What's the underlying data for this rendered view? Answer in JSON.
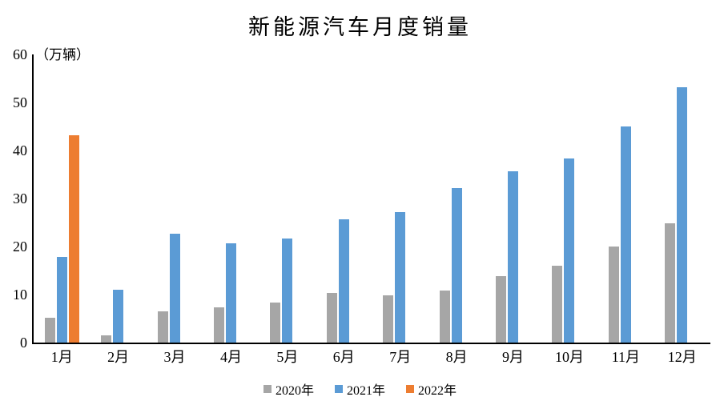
{
  "chart_data": {
    "type": "bar",
    "title": "新能源汽车月度销量",
    "unit_label": "（万辆）",
    "categories": [
      "1月",
      "2月",
      "3月",
      "4月",
      "5月",
      "6月",
      "7月",
      "8月",
      "9月",
      "10月",
      "11月",
      "12月"
    ],
    "series": [
      {
        "name": "2020年",
        "color": "#A6A6A6",
        "values": [
          5.2,
          1.5,
          6.5,
          7.4,
          8.3,
          10.4,
          9.8,
          10.9,
          13.8,
          16.0,
          20.0,
          24.8
        ]
      },
      {
        "name": "2021年",
        "color": "#5B9BD5",
        "values": [
          17.9,
          11.0,
          22.6,
          20.6,
          21.7,
          25.6,
          27.1,
          32.1,
          35.7,
          38.3,
          45.0,
          53.1
        ]
      },
      {
        "name": "2022年",
        "color": "#ED7D31",
        "values": [
          43.1,
          null,
          null,
          null,
          null,
          null,
          null,
          null,
          null,
          null,
          null,
          null
        ]
      }
    ],
    "ylim": [
      0,
      60
    ],
    "ytick_step": 10,
    "xlabel": "",
    "ylabel": "（万辆）",
    "grid": false,
    "legend_position": "bottom",
    "axis_color": "#000000"
  }
}
